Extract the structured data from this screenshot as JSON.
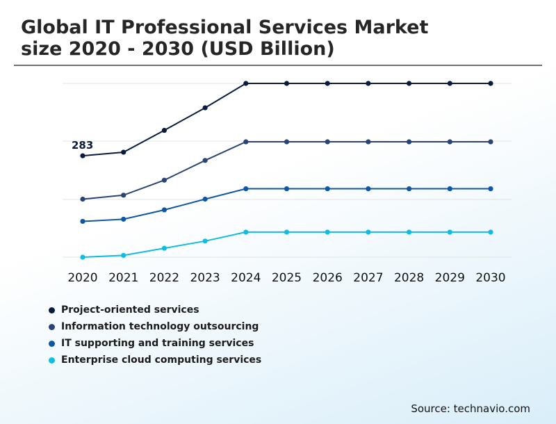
{
  "title": {
    "line1": "Global IT Professional Services Market",
    "line2": "size 2020 - 2030 (USD Billion)"
  },
  "source": "Source: technavio.com",
  "chart_data": {
    "type": "line",
    "title": "Global IT Professional Services Market size 2020 - 2030 (USD Billion)",
    "xlabel": "",
    "ylabel": "",
    "x": [
      "2020",
      "2021",
      "2022",
      "2023",
      "2024",
      "2025",
      "2026",
      "2027",
      "2028",
      "2029",
      "2030"
    ],
    "ylim": [
      0,
      600
    ],
    "grid": true,
    "legend": "bottom-left",
    "annotations": [
      {
        "series": "Project-oriented services",
        "x": "2020",
        "text": "283"
      }
    ],
    "series": [
      {
        "name": "Project-oriented services",
        "color": "#0b1b3d",
        "values": [
          283,
          293,
          354,
          417,
          485,
          485,
          485,
          485,
          485,
          485,
          485
        ]
      },
      {
        "name": "Information technology outsourcing",
        "color": "#2a4473",
        "values": [
          162,
          173,
          215,
          270,
          322,
          322,
          322,
          322,
          322,
          322,
          322
        ]
      },
      {
        "name": "IT supporting and training services",
        "color": "#0e57a5",
        "values": [
          100,
          106,
          132,
          162,
          191,
          191,
          191,
          191,
          191,
          191,
          191
        ]
      },
      {
        "name": "Enterprise cloud computing services",
        "color": "#0fbde0",
        "values": [
          0,
          5,
          25,
          45,
          70,
          70,
          70,
          70,
          70,
          70,
          70
        ]
      }
    ]
  }
}
